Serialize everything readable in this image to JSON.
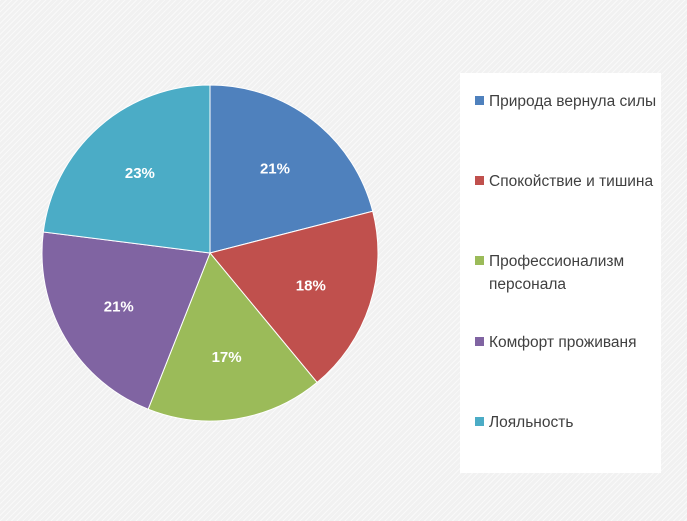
{
  "chart_data": {
    "type": "pie",
    "title": "",
    "categories": [
      "Природа вернула силы",
      "Спокойствие и тишина",
      "Профессионализм персонала",
      "Комфорт проживаня",
      "Лояльность"
    ],
    "values": [
      21,
      18,
      17,
      21,
      23
    ],
    "labels": [
      "21%",
      "18%",
      "17%",
      "21%",
      "23%"
    ],
    "colors": [
      "#4f81bd",
      "#c0504d",
      "#9bbb59",
      "#8064a2",
      "#4bacc6"
    ],
    "legend_position": "right",
    "start_angle": "top, clockwise"
  }
}
